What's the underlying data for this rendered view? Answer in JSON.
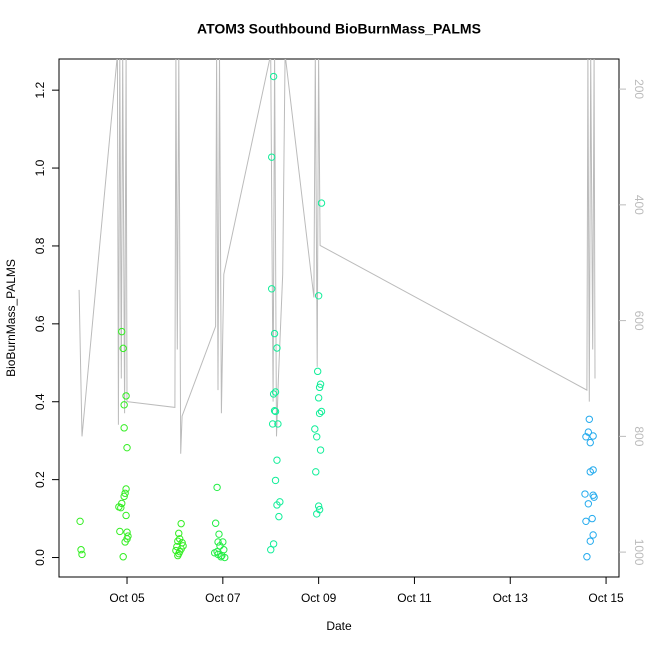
{
  "chart_data": {
    "type": "scatter",
    "title": "ATOM3 Southbound BioBurnMass_PALMS",
    "xlabel": "Date",
    "ylabel": "BioBurnMass_PALMS",
    "xlim": [
      3.58,
      15.27
    ],
    "xticks": [
      {
        "value": 5,
        "label": "Oct 05"
      },
      {
        "value": 7,
        "label": "Oct 07"
      },
      {
        "value": 9,
        "label": "Oct 09"
      },
      {
        "value": 11,
        "label": "Oct 11"
      },
      {
        "value": 13,
        "label": "Oct 13"
      },
      {
        "value": 15,
        "label": "Oct 15"
      }
    ],
    "ylim": [
      -0.05,
      1.28
    ],
    "yticks": [
      {
        "value": 0,
        "label": "0.0"
      },
      0.2,
      0.4,
      0.6,
      0.8,
      {
        "value": 1,
        "label": "1.0"
      },
      1.2
    ],
    "y2lim": [
      1043,
      148
    ],
    "y2ticks": [
      200,
      400,
      600,
      800,
      1000
    ],
    "y2color": "#bbbbbb",
    "series": [
      {
        "style": "line",
        "axis": "y2",
        "color": "#bbbbbb",
        "x": [
          4.0,
          4.06,
          4.8,
          4.82,
          4.85,
          4.88,
          4.91,
          4.95,
          4.98,
          5.0,
          6.0,
          6.02,
          6.05,
          6.08,
          6.12,
          6.15,
          6.85,
          6.87,
          6.9,
          6.93,
          6.97,
          7.02,
          8.0,
          8.05,
          8.08,
          8.12,
          8.16,
          8.25,
          8.3,
          8.9,
          8.93,
          8.97,
          9.0,
          9.03,
          14.6,
          14.62,
          14.65,
          14.68,
          14.72,
          14.75,
          14.77
        ],
        "values": [
          547,
          800,
          140,
          780,
          140,
          700,
          140,
          760,
          140,
          740,
          750,
          140,
          650,
          140,
          830,
          765,
          610,
          140,
          720,
          140,
          760,
          520,
          140,
          740,
          140,
          800,
          700,
          520,
          140,
          560,
          140,
          680,
          140,
          470,
          720,
          140,
          740,
          140,
          650,
          140,
          700
        ]
      },
      {
        "style": "points",
        "color": "#33ee22",
        "x": [
          4.02,
          4.04,
          4.06,
          4.89,
          4.92,
          4.98,
          4.94,
          4.94,
          5.0,
          4.98,
          4.96,
          4.94,
          4.89,
          4.83,
          4.87,
          4.85,
          5.0,
          5.02,
          5.0,
          4.96,
          4.92,
          4.98
        ],
        "values": [
          0.093,
          0.02,
          0.008,
          0.58,
          0.537,
          0.415,
          0.392,
          0.333,
          0.282,
          0.176,
          0.165,
          0.157,
          0.139,
          0.13,
          0.128,
          0.067,
          0.065,
          0.055,
          0.048,
          0.04,
          0.002,
          0.108
        ]
      },
      {
        "style": "points",
        "color": "#33ee22",
        "x": [
          6.13,
          6.08,
          6.1,
          6.06,
          6.15,
          6.04,
          6.13,
          6.02,
          6.08,
          6.06,
          6.1,
          6.17
        ],
        "values": [
          0.087,
          0.062,
          0.048,
          0.042,
          0.038,
          0.028,
          0.022,
          0.018,
          0.01,
          0.005,
          0.015,
          0.03
        ]
      },
      {
        "style": "points",
        "color": "#22ee44",
        "x": [
          6.88,
          6.85,
          6.92,
          6.9,
          7.0,
          6.94,
          6.83,
          6.9,
          6.98,
          7.02,
          6.96,
          6.88,
          7.04
        ],
        "values": [
          0.18,
          0.088,
          0.06,
          0.04,
          0.04,
          0.03,
          0.012,
          0.008,
          0.005,
          0.02,
          0.002,
          0.015,
          0.0
        ]
      },
      {
        "style": "points",
        "color": "#11ee99",
        "x": [
          8.06,
          8.02,
          8.02,
          8.08,
          8.13,
          8.1,
          8.06,
          8.08,
          8.1,
          8.04,
          8.15,
          8.13,
          8.1,
          8.19,
          8.13,
          8.17,
          8.06,
          8.0
        ],
        "values": [
          1.235,
          1.028,
          0.69,
          0.575,
          0.538,
          0.425,
          0.42,
          0.377,
          0.375,
          0.343,
          0.343,
          0.25,
          0.198,
          0.143,
          0.135,
          0.105,
          0.035,
          0.02
        ]
      },
      {
        "style": "points",
        "color": "#11ee99",
        "x": [
          9.06,
          9.0,
          8.98,
          9.04,
          9.02,
          9.0,
          9.06,
          9.02,
          8.92,
          8.96,
          9.04,
          8.94,
          9.0,
          9.02,
          8.96
        ],
        "values": [
          0.91,
          0.672,
          0.478,
          0.445,
          0.437,
          0.41,
          0.375,
          0.37,
          0.33,
          0.31,
          0.276,
          0.22,
          0.132,
          0.123,
          0.112
        ]
      },
      {
        "style": "points",
        "color": "#22aaee",
        "x": [
          14.65,
          14.58,
          14.63,
          14.73,
          14.67,
          14.73,
          14.67,
          14.56,
          14.73,
          14.75,
          14.63,
          14.71,
          14.58,
          14.73,
          14.67,
          14.6
        ],
        "values": [
          0.355,
          0.31,
          0.322,
          0.312,
          0.295,
          0.225,
          0.22,
          0.163,
          0.16,
          0.155,
          0.138,
          0.1,
          0.093,
          0.058,
          0.042,
          0.002
        ]
      }
    ]
  }
}
